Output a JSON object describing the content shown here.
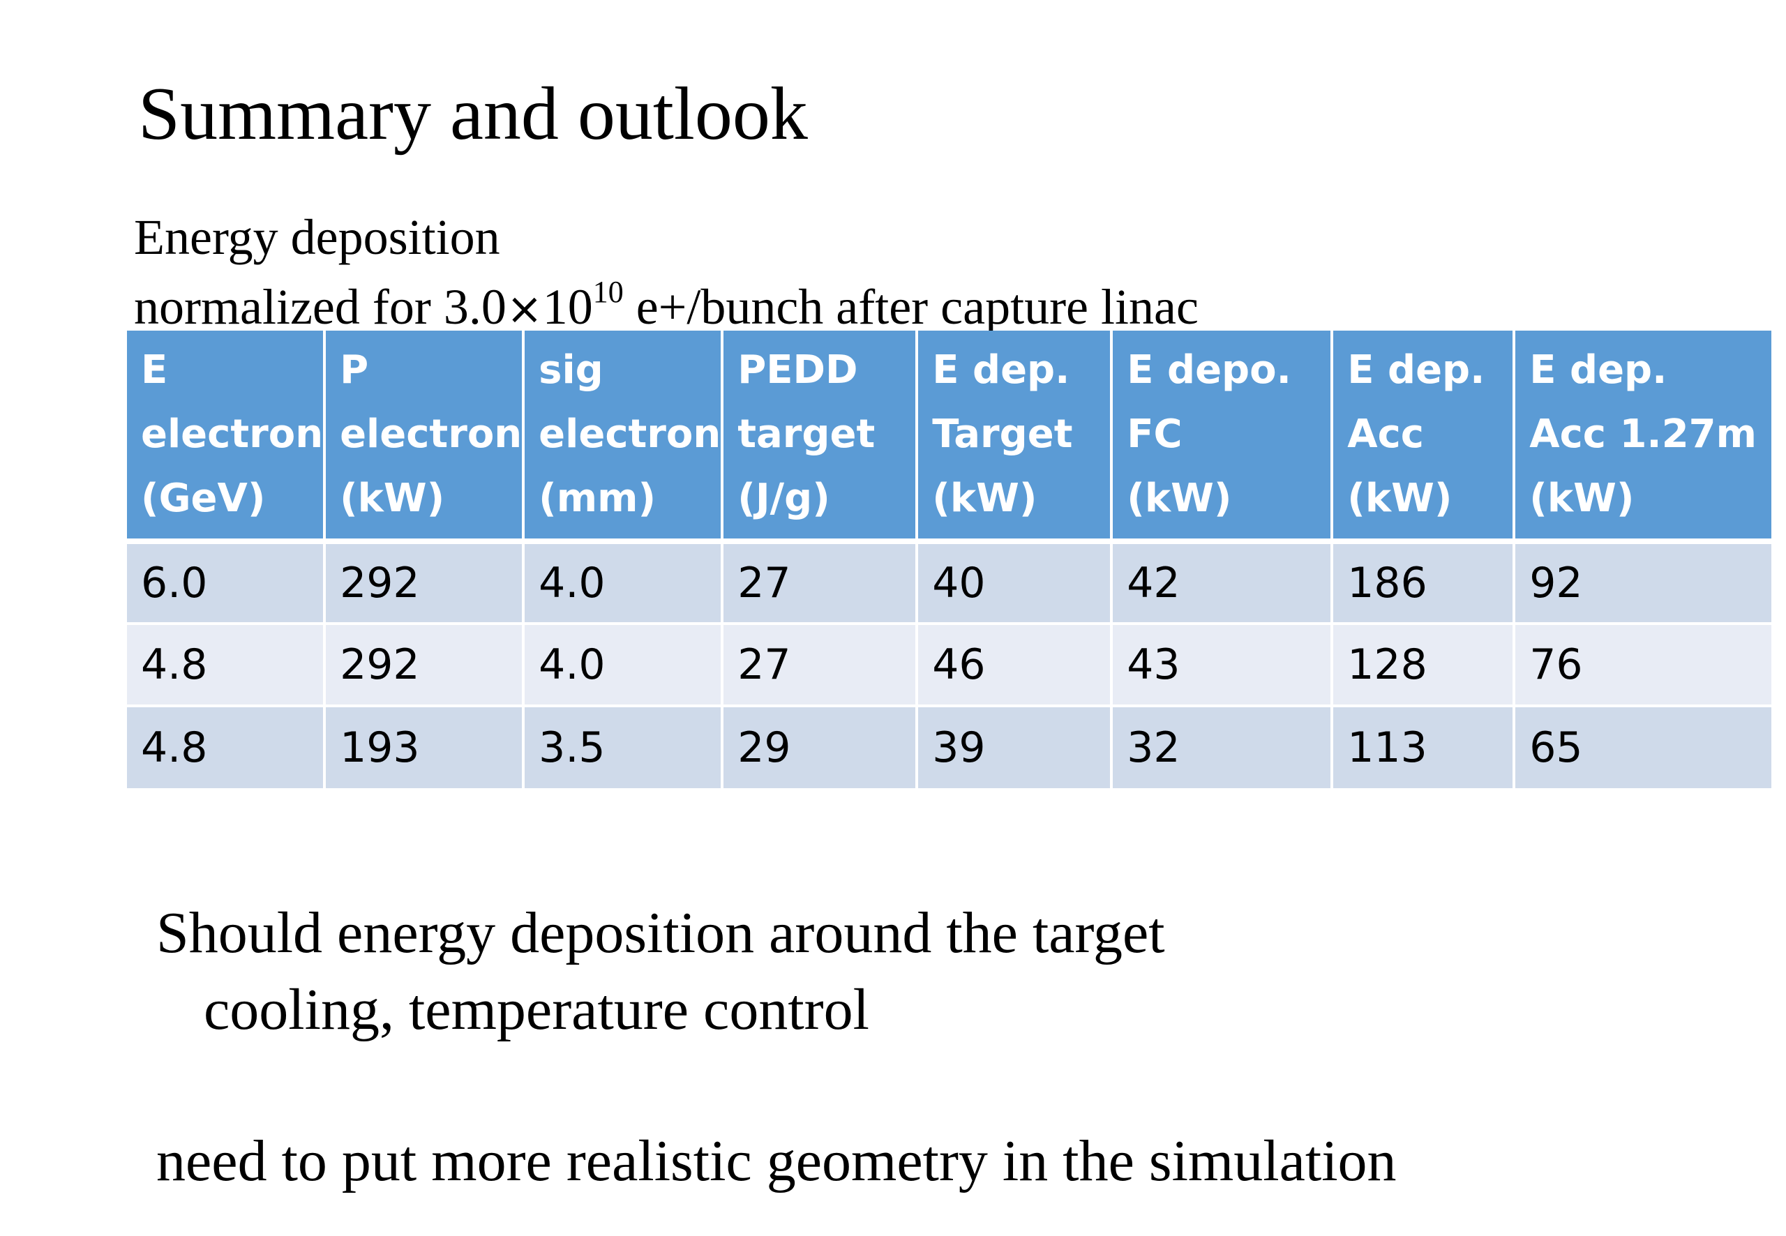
{
  "title": "Summary and outlook",
  "subtitle": {
    "line1": "Energy deposition",
    "line2_prefix": "normalized for 3.0",
    "times": "×",
    "base": "10",
    "exponent": "10",
    "line2_suffix": " e+/bunch after capture linac"
  },
  "table": {
    "headers": [
      [
        "E",
        "electron",
        "(GeV)"
      ],
      [
        "P",
        "electron",
        "(kW)"
      ],
      [
        "sig",
        "electron",
        "(mm)"
      ],
      [
        "PEDD",
        "target",
        "(J/g)"
      ],
      [
        "E dep.",
        "Target",
        "(kW)"
      ],
      [
        "E depo.",
        "FC",
        "(kW)"
      ],
      [
        "E dep.",
        "Acc",
        "(kW)"
      ],
      [
        "E dep.",
        "Acc 1.27m",
        "(kW)"
      ]
    ],
    "rows": [
      [
        "6.0",
        "292",
        "4.0",
        "27",
        "40",
        "42",
        "186",
        "92"
      ],
      [
        "4.8",
        "292",
        "4.0",
        "27",
        "46",
        "43",
        "128",
        "76"
      ],
      [
        "4.8",
        "193",
        "3.5",
        "29",
        "39",
        "32",
        "113",
        "65"
      ]
    ]
  },
  "notes": {
    "note1_line1": "Should energy deposition around the target",
    "note1_line2": "cooling, temperature control",
    "note2": "need to put more realistic geometry in the simulation"
  },
  "colors": {
    "header_bg": "#5b9bd5",
    "row_odd_bg": "#cfdaea",
    "row_even_bg": "#e8ecf5"
  }
}
